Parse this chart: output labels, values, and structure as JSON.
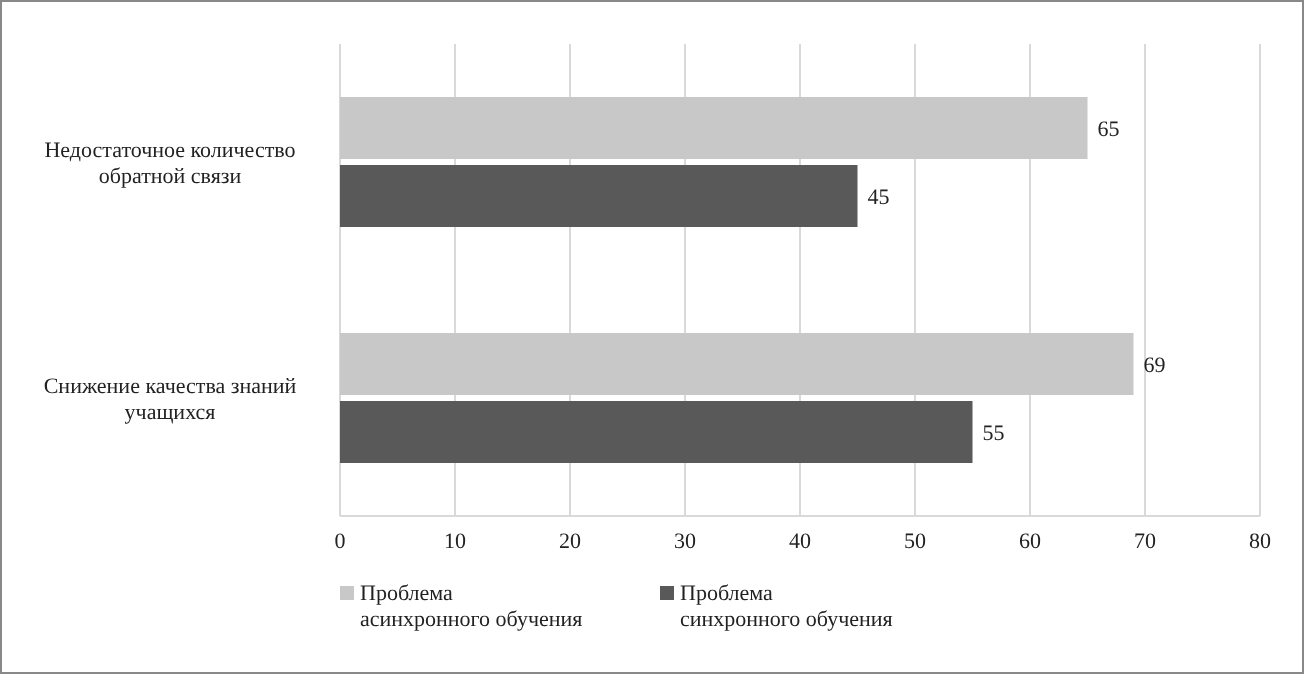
{
  "chart_data": {
    "type": "bar",
    "orientation": "horizontal",
    "categories": [
      "Недостаточное количество обратной связи",
      "Снижение качества знаний учащихся"
    ],
    "series": [
      {
        "name": "Проблема асинхронного обучения",
        "color": "#c8c8c8",
        "values": [
          65,
          69
        ]
      },
      {
        "name": "Проблема синхронного обучения",
        "color": "#595959",
        "values": [
          45,
          55
        ]
      }
    ],
    "xlim": [
      0,
      80
    ],
    "xticks": [
      0,
      10,
      20,
      30,
      40,
      50,
      60,
      70,
      80
    ],
    "grid": "x",
    "legend": "bottom",
    "data_labels": true
  }
}
